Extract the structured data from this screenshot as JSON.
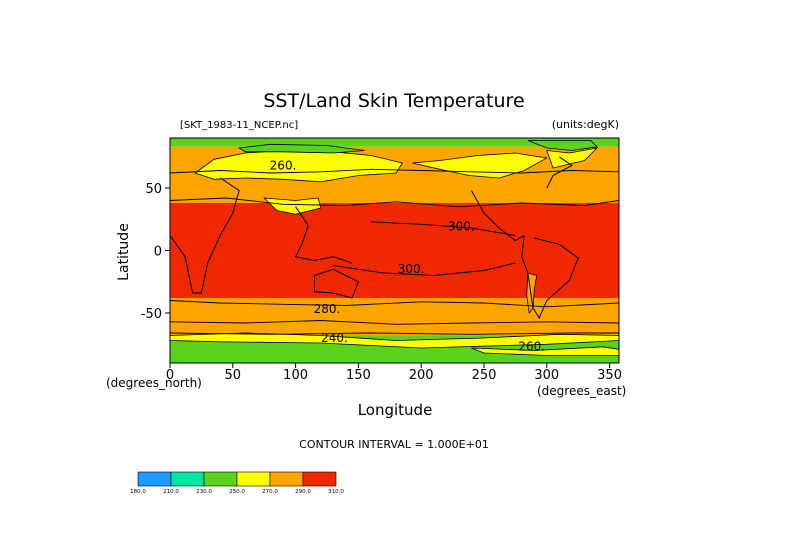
{
  "chart_data": {
    "type": "heatmap",
    "title": "SST/Land Skin Temperature",
    "dataset_label": "[SKT_1983-11_NCEP.nc]",
    "units_label": "(units:degK)",
    "xlabel": "Longitude",
    "ylabel": "Latitude",
    "x_unit_label": "(degrees_east)",
    "y_unit_label": "(degrees_north)",
    "xlim": [
      0,
      357.5
    ],
    "ylim": [
      -90,
      90
    ],
    "x_ticks": [
      0,
      50,
      100,
      150,
      200,
      250,
      300,
      350
    ],
    "y_ticks": [
      -50,
      0,
      50
    ],
    "contour_interval_text": "CONTOUR INTERVAL = 1.000E+01",
    "contour_labels": [
      {
        "text": "260.",
        "lon": 90,
        "lat": 65
      },
      {
        "text": "300.",
        "lon": 232,
        "lat": 16
      },
      {
        "text": "300.",
        "lon": 192,
        "lat": -18
      },
      {
        "text": "280.",
        "lon": 125,
        "lat": -50
      },
      {
        "text": "240.",
        "lon": 131,
        "lat": -73
      },
      {
        "text": "260.",
        "lon": 288,
        "lat": -80
      }
    ],
    "colorbar": {
      "levels": [
        "180.0",
        "210.0",
        "230.0",
        "250.0",
        "270.0",
        "290.0",
        "310.0"
      ],
      "colors": [
        "#1e9bff",
        "#00e6a0",
        "#5ad21e",
        "#ffff00",
        "#ffa500",
        "#f02800"
      ]
    },
    "temperature_bands": [
      {
        "lat_from": 90,
        "lat_to": 83,
        "color": "#5ad21e"
      },
      {
        "lat_from": 83,
        "lat_to": 62,
        "color": "#ffa500"
      },
      {
        "lat_from": 62,
        "lat_to": 38,
        "color": "#ffa500"
      },
      {
        "lat_from": 38,
        "lat_to": -38,
        "color": "#f02800"
      },
      {
        "lat_from": -38,
        "lat_to": -58,
        "color": "#ffa500"
      },
      {
        "lat_from": -58,
        "lat_to": -68,
        "color": "#ffa500"
      },
      {
        "lat_from": -68,
        "lat_to": -80,
        "color": "#5ad21e"
      },
      {
        "lat_from": -80,
        "lat_to": -90,
        "color": "#5ad21e"
      }
    ]
  }
}
